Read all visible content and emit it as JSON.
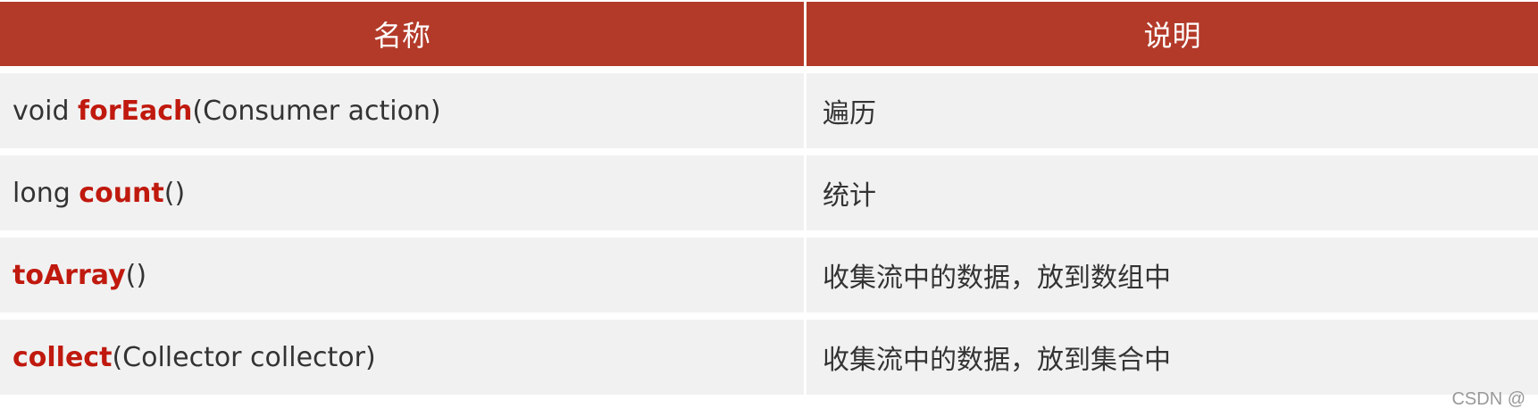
{
  "table": {
    "headers": [
      "名称",
      "说明"
    ],
    "rows": [
      {
        "prefix": "void ",
        "method": "forEach",
        "suffix": "(Consumer action)",
        "desc": "遍历"
      },
      {
        "prefix": "long ",
        "method": "count",
        "suffix": "()",
        "desc": "统计"
      },
      {
        "prefix": "",
        "method": "toArray",
        "suffix": "()",
        "desc": "收集流中的数据，放到数组中"
      },
      {
        "prefix": "",
        "method": "collect",
        "suffix": "(Collector collector)",
        "desc": "收集流中的数据，放到集合中"
      }
    ],
    "colors": {
      "header_bg": "#b33a29",
      "keyword": "#c0190e",
      "row_bg": "#f1f1f1"
    }
  },
  "watermark": "CSDN @"
}
